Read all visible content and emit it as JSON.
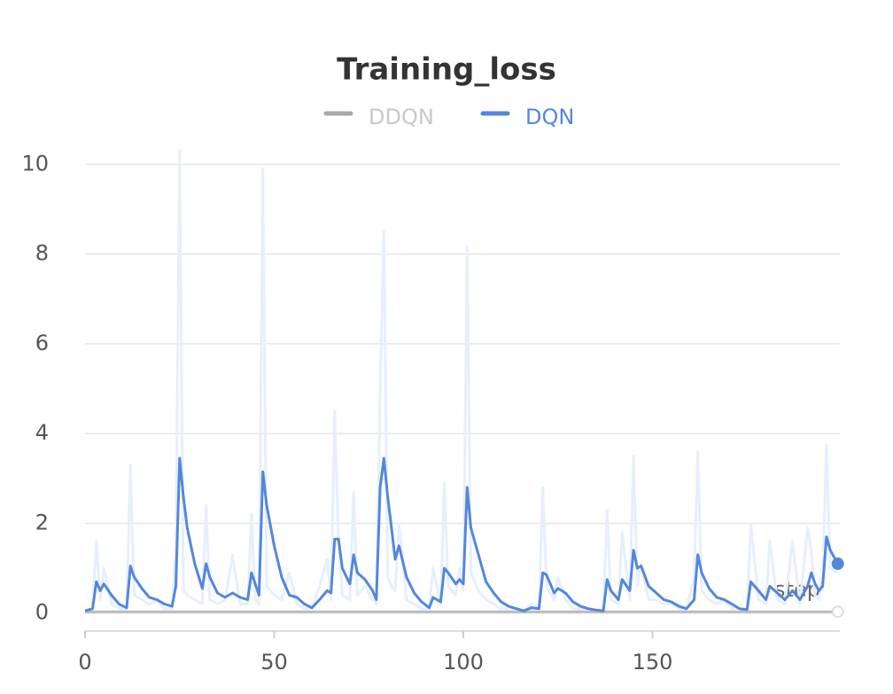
{
  "chart_data": {
    "type": "line",
    "title": "Training_loss",
    "x_label": "step",
    "xlim": [
      0,
      200
    ],
    "xticks": [
      0,
      50,
      100,
      150
    ],
    "ylim": [
      -0.4,
      10.5
    ],
    "yticks": [
      0,
      2,
      4,
      6,
      8,
      10
    ],
    "grid": true,
    "series": [
      {
        "name": "DDQN",
        "color": "#bbbbbb",
        "hidden": true,
        "x": [
          0,
          25,
          50,
          75,
          100,
          125,
          150,
          175,
          199
        ],
        "values": [
          0.03,
          0.03,
          0.03,
          0.03,
          0.03,
          0.03,
          0.03,
          0.03,
          0.03
        ]
      },
      {
        "name": "DQN",
        "color": "#5387dd",
        "raw_color": "#e6effc",
        "x": [
          0,
          2,
          3,
          4,
          5,
          7,
          9,
          11,
          12,
          13,
          15,
          17,
          19,
          21,
          23,
          24,
          25,
          26,
          27,
          29,
          31,
          32,
          33,
          35,
          37,
          39,
          41,
          43,
          44,
          45,
          46,
          47,
          48,
          50,
          52,
          54,
          56,
          58,
          60,
          62,
          64,
          65,
          66,
          67,
          68,
          70,
          71,
          72,
          74,
          76,
          77,
          78,
          79,
          80,
          81,
          82,
          83,
          85,
          87,
          89,
          91,
          92,
          94,
          95,
          96,
          98,
          99,
          100,
          101,
          102,
          104,
          106,
          108,
          110,
          112,
          114,
          116,
          118,
          120,
          121,
          122,
          124,
          125,
          127,
          129,
          131,
          133,
          135,
          137,
          138,
          139,
          141,
          142,
          144,
          145,
          146,
          147,
          149,
          151,
          153,
          155,
          157,
          159,
          161,
          162,
          163,
          165,
          167,
          169,
          171,
          173,
          175,
          176,
          178,
          180,
          181,
          183,
          185,
          187,
          189,
          191,
          192,
          193,
          194,
          195,
          196,
          197,
          199
        ],
        "values": [
          0.05,
          0.1,
          0.7,
          0.5,
          0.65,
          0.4,
          0.2,
          0.12,
          1.05,
          0.8,
          0.55,
          0.35,
          0.3,
          0.2,
          0.15,
          0.6,
          3.45,
          2.6,
          1.9,
          1.1,
          0.55,
          1.1,
          0.8,
          0.45,
          0.35,
          0.45,
          0.35,
          0.3,
          0.9,
          0.65,
          0.4,
          3.15,
          2.4,
          1.5,
          0.8,
          0.4,
          0.35,
          0.2,
          0.12,
          0.3,
          0.5,
          0.45,
          1.65,
          1.65,
          1.0,
          0.65,
          1.3,
          0.9,
          0.75,
          0.5,
          0.3,
          2.8,
          3.45,
          2.6,
          1.9,
          1.2,
          1.5,
          0.8,
          0.45,
          0.25,
          0.12,
          0.35,
          0.25,
          1.0,
          0.9,
          0.65,
          0.75,
          0.65,
          2.8,
          1.9,
          1.3,
          0.7,
          0.45,
          0.25,
          0.15,
          0.1,
          0.05,
          0.12,
          0.1,
          0.9,
          0.85,
          0.45,
          0.55,
          0.45,
          0.25,
          0.15,
          0.1,
          0.07,
          0.05,
          0.75,
          0.5,
          0.3,
          0.75,
          0.5,
          1.4,
          1.0,
          1.05,
          0.6,
          0.45,
          0.3,
          0.25,
          0.15,
          0.1,
          0.3,
          1.3,
          0.9,
          0.55,
          0.35,
          0.3,
          0.2,
          0.1,
          0.08,
          0.7,
          0.5,
          0.3,
          0.6,
          0.45,
          0.3,
          0.5,
          0.3,
          0.6,
          0.9,
          0.65,
          0.5,
          0.6,
          1.7,
          1.4,
          1.1
        ],
        "raw_values": [
          0.05,
          0.1,
          1.6,
          0.3,
          1.0,
          0.2,
          0.1,
          0.1,
          3.3,
          0.4,
          0.3,
          0.2,
          0.3,
          0.1,
          0.1,
          1.5,
          10.3,
          0.5,
          0.4,
          0.3,
          0.2,
          2.4,
          0.3,
          0.2,
          0.3,
          1.3,
          0.2,
          0.2,
          2.2,
          0.3,
          0.2,
          9.9,
          0.6,
          0.4,
          0.3,
          0.9,
          0.2,
          0.1,
          0.1,
          0.6,
          1.2,
          0.3,
          4.5,
          1.6,
          0.4,
          0.3,
          2.7,
          0.4,
          0.6,
          0.3,
          0.2,
          5.0,
          8.5,
          0.8,
          0.6,
          0.5,
          2.0,
          0.3,
          0.2,
          0.1,
          0.1,
          1.0,
          0.2,
          2.9,
          0.6,
          0.4,
          1.0,
          0.5,
          8.15,
          0.9,
          0.5,
          0.3,
          0.2,
          0.1,
          0.1,
          0.1,
          0.05,
          0.2,
          0.1,
          2.8,
          0.6,
          0.3,
          0.8,
          0.3,
          0.1,
          0.1,
          0.1,
          0.05,
          0.05,
          2.3,
          0.3,
          0.2,
          1.8,
          0.3,
          3.5,
          0.6,
          1.1,
          0.3,
          0.3,
          0.2,
          0.2,
          0.1,
          0.1,
          0.8,
          3.6,
          0.5,
          0.3,
          0.2,
          0.3,
          0.1,
          0.1,
          0.05,
          2.0,
          0.3,
          0.2,
          1.6,
          0.3,
          0.2,
          1.6,
          0.2,
          1.9,
          1.4,
          0.4,
          0.3,
          0.8,
          3.75,
          1.0,
          0.9
        ]
      }
    ]
  }
}
